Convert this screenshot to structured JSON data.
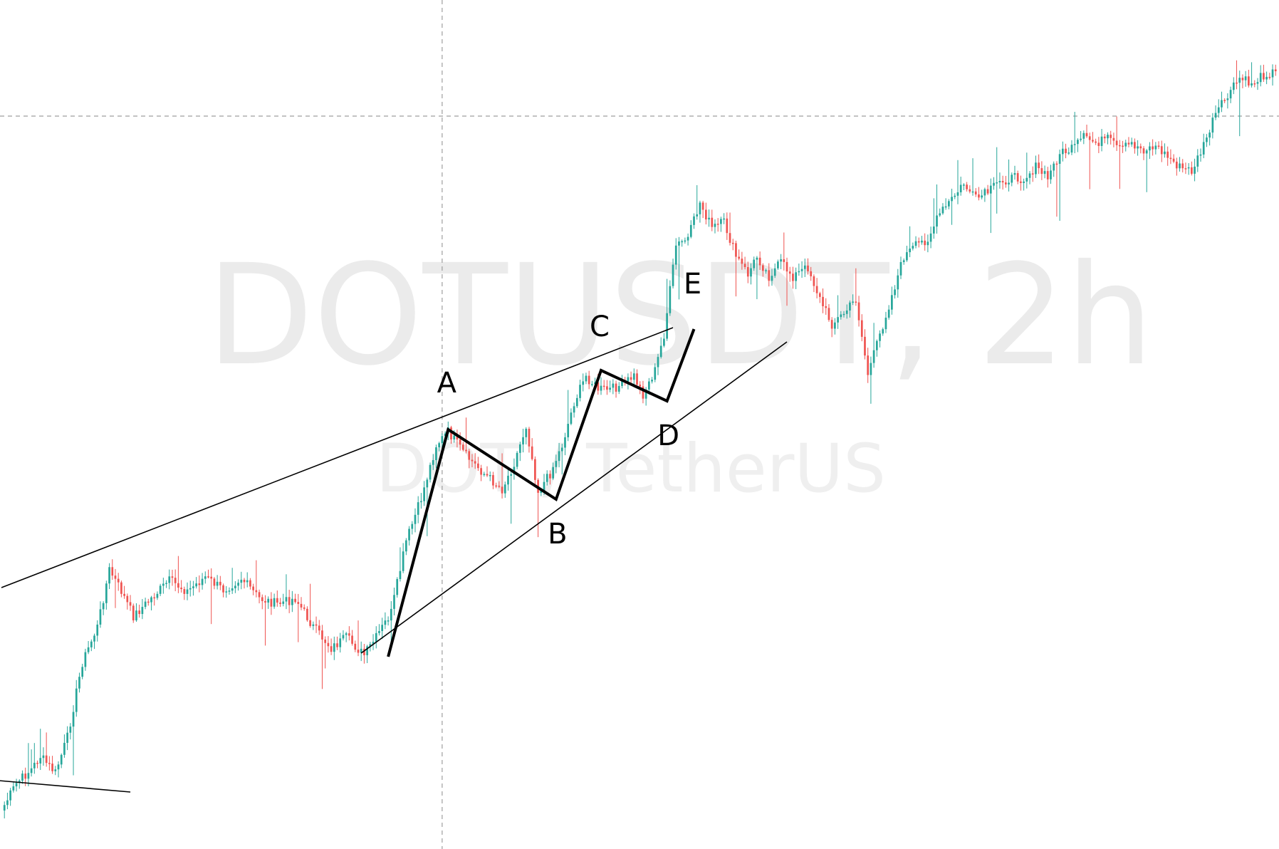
{
  "watermark": {
    "symbol_line": "DOTUSDT, 2h",
    "description_line": "DOT / TetherUS"
  },
  "colors": {
    "up": "#26a69a",
    "down": "#ef5350",
    "crosshair": "#9e9e9e",
    "trendline": "#000000",
    "watermark": "#ebebeb"
  },
  "chart_data": {
    "type": "candlestick",
    "symbol": "DOTUSDT",
    "timeframe": "2h",
    "title": "",
    "xlabel": "",
    "ylabel": "",
    "axes_visible": false,
    "grid": false,
    "ylim": [
      0,
      1192
    ],
    "price_note": "no price scale printed; values are relative price units",
    "anchors": [
      [
        0,
        1138
      ],
      [
        5,
        1100
      ],
      [
        10,
        1080
      ],
      [
        13,
        1062
      ],
      [
        18,
        1085
      ],
      [
        22,
        1035
      ],
      [
        27,
        930
      ],
      [
        32,
        880
      ],
      [
        36,
        800
      ],
      [
        40,
        830
      ],
      [
        44,
        865
      ],
      [
        50,
        840
      ],
      [
        56,
        815
      ],
      [
        62,
        830
      ],
      [
        68,
        810
      ],
      [
        74,
        828
      ],
      [
        80,
        812
      ],
      [
        86,
        840
      ],
      [
        92,
        848
      ],
      [
        98,
        840
      ],
      [
        104,
        880
      ],
      [
        110,
        910
      ],
      [
        115,
        895
      ],
      [
        121,
        920
      ],
      [
        125,
        895
      ],
      [
        130,
        860
      ],
      [
        135,
        760
      ],
      [
        140,
        700
      ],
      [
        145,
        625
      ],
      [
        149,
        606
      ],
      [
        155,
        640
      ],
      [
        161,
        665
      ],
      [
        167,
        687
      ],
      [
        171,
        650
      ],
      [
        175,
        598
      ],
      [
        179,
        690
      ],
      [
        183,
        665
      ],
      [
        187,
        625
      ],
      [
        191,
        565
      ],
      [
        195,
        528
      ],
      [
        199,
        546
      ],
      [
        203,
        547
      ],
      [
        207,
        540
      ],
      [
        211,
        528
      ],
      [
        214,
        554
      ],
      [
        218,
        520
      ],
      [
        221,
        470
      ],
      [
        225,
        345
      ],
      [
        229,
        335
      ],
      [
        233,
        285
      ],
      [
        237,
        320
      ],
      [
        241,
        312
      ],
      [
        245,
        360
      ],
      [
        249,
        385
      ],
      [
        252,
        360
      ],
      [
        256,
        388
      ],
      [
        260,
        368
      ],
      [
        264,
        388
      ],
      [
        269,
        375
      ],
      [
        273,
        420
      ],
      [
        277,
        455
      ],
      [
        281,
        440
      ],
      [
        285,
        420
      ],
      [
        289,
        525
      ],
      [
        293,
        470
      ],
      [
        297,
        415
      ],
      [
        301,
        360
      ],
      [
        305,
        345
      ],
      [
        309,
        335
      ],
      [
        313,
        300
      ],
      [
        317,
        280
      ],
      [
        321,
        258
      ],
      [
        325,
        280
      ],
      [
        329,
        270
      ],
      [
        333,
        255
      ],
      [
        337,
        250
      ],
      [
        341,
        250
      ],
      [
        345,
        235
      ],
      [
        349,
        250
      ],
      [
        353,
        215
      ],
      [
        357,
        210
      ],
      [
        361,
        193
      ],
      [
        365,
        200
      ],
      [
        369,
        195
      ],
      [
        373,
        210
      ],
      [
        377,
        202
      ],
      [
        381,
        210
      ],
      [
        385,
        205
      ],
      [
        389,
        220
      ],
      [
        393,
        235
      ],
      [
        397,
        240
      ],
      [
        401,
        205
      ],
      [
        405,
        160
      ],
      [
        409,
        135
      ],
      [
        413,
        110
      ],
      [
        417,
        118
      ],
      [
        421,
        105
      ],
      [
        425,
        100
      ]
    ],
    "trendlines": [
      {
        "name": "upper",
        "from": [
          0,
          825
        ],
        "to": [
          224,
          460
        ]
      },
      {
        "name": "lower",
        "from": [
          120,
          917
        ],
        "to": [
          262,
          480
        ]
      },
      {
        "name": "left-base",
        "from": [
          -20,
          1089
        ],
        "to": [
          43,
          1112
        ]
      }
    ],
    "wave_points": [
      {
        "label": "A",
        "x": 149,
        "y": 603
      },
      {
        "label": "B",
        "x": 185,
        "y": 701
      },
      {
        "label": "C",
        "x": 200,
        "y": 520
      },
      {
        "label": "D",
        "x": 222,
        "y": 563
      },
      {
        "label": "E",
        "x": 231,
        "y": 462
      }
    ],
    "wave_start": {
      "x": 129,
      "y": 922
    },
    "crosshair": {
      "x": 147,
      "y": 163
    }
  }
}
